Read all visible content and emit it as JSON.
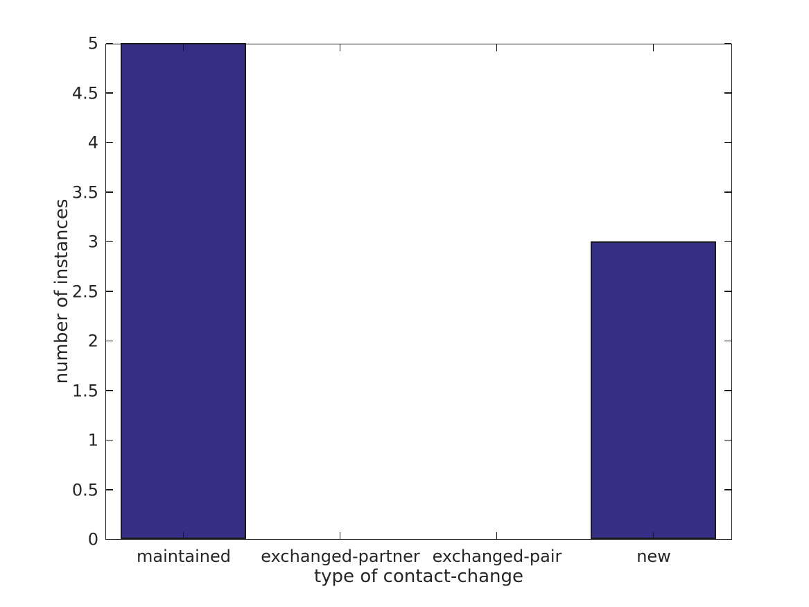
{
  "figure": {
    "background_color": "#ffffff",
    "axis_line_color": "#1a1a1a",
    "text_color": "#262626"
  },
  "chart_data": {
    "type": "bar",
    "title": "",
    "categories": [
      "maintained",
      "exchanged-partner",
      "exchanged-pair",
      "new"
    ],
    "values": [
      5,
      0,
      0,
      3
    ],
    "xlabel": "type of contact-change",
    "ylabel": "number of instances",
    "ylim": [
      0,
      5
    ],
    "ytick_step": 0.5,
    "ytick_labels": [
      "0",
      "0.5",
      "1",
      "1.5",
      "2",
      "2.5",
      "3",
      "3.5",
      "4",
      "4.5",
      "5"
    ],
    "grid": false,
    "legend": null,
    "box": true,
    "ticks_inward": true,
    "bar_color": "#352e85",
    "bar_edge_color": "#1a1a1a",
    "bar_width_fraction": 0.8
  }
}
